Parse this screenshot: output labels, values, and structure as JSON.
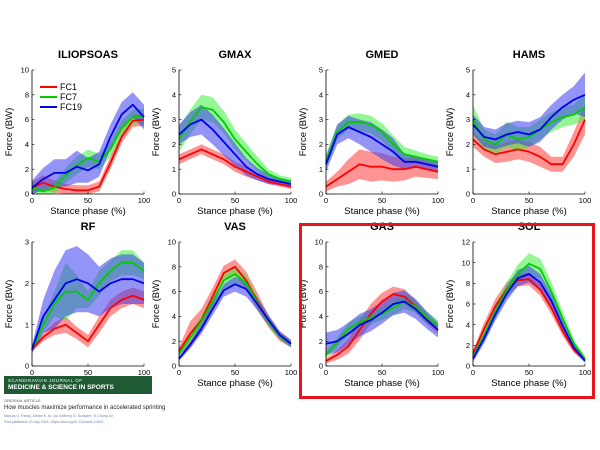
{
  "figure": {
    "journal_name_small": "SCANDINAVIAN JOURNAL OF",
    "journal_name_big": "MEDICINE & SCIENCE IN SPORTS",
    "article_type": "ORIGINAL ARTICLE",
    "article_title": "How muscles maximize performance in accelerated sprinting",
    "authors": "Marcus G. Pandy, Adrian K. M. Lai, Anthony G. Schache, Yi-Chung Lin",
    "doi_line": "First published: 13 July 2021 | https://doi.org/10.1111/sms.14021",
    "colors": {
      "FC1": "#ff0000",
      "FC7": "#00cc00",
      "FC19": "#0000ee",
      "highlight": "#e8141d"
    }
  },
  "chart_data": [
    {
      "type": "line",
      "title": "ILIOPSOAS",
      "xlabel": "Stance phase (%)",
      "ylabel": "Force (BW)",
      "xlim": [
        0,
        100
      ],
      "ylim": [
        0,
        10
      ],
      "yticks": [
        0,
        2,
        4,
        6,
        8,
        10
      ],
      "xticks": [
        0,
        50,
        100
      ],
      "legend": {
        "position": "top-left",
        "entries": [
          "FC1",
          "FC7",
          "FC19"
        ]
      },
      "x": [
        0,
        10,
        20,
        30,
        40,
        50,
        60,
        70,
        80,
        90,
        100
      ],
      "series": [
        {
          "name": "FC1",
          "values": [
            0.5,
            0.9,
            0.6,
            0.4,
            0.3,
            0.3,
            0.6,
            2.5,
            4.6,
            5.9,
            6.0
          ],
          "band": [
            0.5,
            0.6,
            0.5,
            0.4,
            0.4,
            0.4,
            0.4,
            0.5,
            0.5,
            0.5,
            0.5
          ]
        },
        {
          "name": "FC7",
          "values": [
            0.5,
            0.2,
            0.5,
            1.5,
            2.3,
            2.9,
            2.6,
            3.6,
            5.3,
            6.2,
            6.3
          ],
          "band": [
            0.5,
            0.4,
            0.5,
            0.6,
            0.7,
            0.7,
            0.6,
            0.6,
            0.6,
            0.6,
            0.6
          ]
        },
        {
          "name": "FC19",
          "values": [
            0.5,
            1.2,
            1.7,
            1.7,
            2.2,
            1.9,
            2.4,
            4.6,
            6.4,
            7.2,
            6.2
          ],
          "band": [
            0.6,
            0.9,
            1.1,
            1.1,
            1.3,
            1.0,
            1.0,
            1.0,
            1.0,
            1.0,
            1.0
          ]
        }
      ]
    },
    {
      "type": "line",
      "title": "GMAX",
      "xlabel": "Stance phase (%)",
      "ylabel": "Force (BW)",
      "xlim": [
        0,
        100
      ],
      "ylim": [
        0,
        5
      ],
      "yticks": [
        0,
        1,
        2,
        3,
        4,
        5
      ],
      "xticks": [
        0,
        50,
        100
      ],
      "x": [
        0,
        10,
        20,
        30,
        40,
        50,
        60,
        70,
        80,
        90,
        100
      ],
      "series": [
        {
          "name": "FC1",
          "values": [
            1.4,
            1.6,
            1.8,
            1.6,
            1.4,
            1.1,
            0.9,
            0.7,
            0.5,
            0.4,
            0.3
          ],
          "band": [
            0.2,
            0.2,
            0.2,
            0.2,
            0.2,
            0.2,
            0.2,
            0.15,
            0.1,
            0.1,
            0.1
          ]
        },
        {
          "name": "FC7",
          "values": [
            2.2,
            2.9,
            3.5,
            3.4,
            2.9,
            2.2,
            1.7,
            1.2,
            0.8,
            0.6,
            0.5
          ],
          "band": [
            0.5,
            0.5,
            0.5,
            0.5,
            0.45,
            0.4,
            0.35,
            0.3,
            0.2,
            0.15,
            0.15
          ]
        },
        {
          "name": "FC19",
          "values": [
            2.4,
            2.8,
            3.0,
            2.6,
            2.1,
            1.6,
            1.1,
            0.8,
            0.6,
            0.5,
            0.4
          ],
          "band": [
            0.4,
            0.5,
            0.6,
            0.6,
            0.55,
            0.45,
            0.35,
            0.25,
            0.2,
            0.15,
            0.15
          ]
        }
      ]
    },
    {
      "type": "line",
      "title": "GMED",
      "xlabel": "Stance phase (%)",
      "ylabel": "Force (BW)",
      "xlim": [
        0,
        100
      ],
      "ylim": [
        0,
        5
      ],
      "yticks": [
        0,
        1,
        2,
        3,
        4,
        5
      ],
      "xticks": [
        0,
        50,
        100
      ],
      "x": [
        0,
        10,
        20,
        30,
        40,
        50,
        60,
        70,
        80,
        90,
        100
      ],
      "series": [
        {
          "name": "FC1",
          "values": [
            0.3,
            0.6,
            0.9,
            1.2,
            1.1,
            1.1,
            1.0,
            1.0,
            1.1,
            1.0,
            0.9
          ],
          "band": [
            0.2,
            0.3,
            0.5,
            0.6,
            0.6,
            0.55,
            0.5,
            0.45,
            0.4,
            0.35,
            0.3
          ]
        },
        {
          "name": "FC7",
          "values": [
            1.3,
            2.5,
            2.9,
            2.9,
            2.8,
            2.5,
            2.0,
            1.6,
            1.5,
            1.4,
            1.3
          ],
          "band": [
            0.3,
            0.3,
            0.3,
            0.35,
            0.35,
            0.35,
            0.35,
            0.3,
            0.25,
            0.2,
            0.2
          ]
        },
        {
          "name": "FC19",
          "values": [
            1.2,
            2.4,
            2.7,
            2.5,
            2.3,
            2.0,
            1.7,
            1.3,
            1.3,
            1.2,
            1.1
          ],
          "band": [
            0.3,
            0.4,
            0.45,
            0.5,
            0.6,
            0.6,
            0.55,
            0.3,
            0.25,
            0.2,
            0.2
          ]
        }
      ]
    },
    {
      "type": "line",
      "title": "HAMS",
      "xlabel": "Stance phase (%)",
      "ylabel": "Force (BW)",
      "xlim": [
        0,
        100
      ],
      "ylim": [
        0,
        5
      ],
      "yticks": [
        0,
        1,
        2,
        3,
        4,
        5
      ],
      "xticks": [
        0,
        50,
        100
      ],
      "x": [
        0,
        10,
        20,
        30,
        40,
        50,
        60,
        70,
        80,
        90,
        100
      ],
      "series": [
        {
          "name": "FC1",
          "values": [
            2.2,
            1.8,
            1.6,
            1.7,
            1.8,
            1.7,
            1.5,
            1.2,
            1.2,
            2.0,
            3.0
          ],
          "band": [
            0.3,
            0.3,
            0.35,
            0.4,
            0.4,
            0.4,
            0.4,
            0.3,
            0.3,
            0.5,
            0.6
          ]
        },
        {
          "name": "FC7",
          "values": [
            3.0,
            2.2,
            2.0,
            2.4,
            2.2,
            2.3,
            2.6,
            2.9,
            3.1,
            3.2,
            3.5
          ],
          "band": [
            0.6,
            0.4,
            0.4,
            0.5,
            0.5,
            0.4,
            0.4,
            0.4,
            0.4,
            0.4,
            0.5
          ]
        },
        {
          "name": "FC19",
          "values": [
            2.8,
            2.3,
            2.2,
            2.4,
            2.5,
            2.4,
            2.6,
            3.1,
            3.5,
            3.8,
            4.0
          ],
          "band": [
            0.4,
            0.4,
            0.4,
            0.45,
            0.45,
            0.5,
            0.5,
            0.5,
            0.5,
            0.55,
            0.9
          ]
        }
      ]
    },
    {
      "type": "line",
      "title": "RF",
      "xlabel": "Stance phase (%)",
      "ylabel": "Force (BW)",
      "xlim": [
        0,
        100
      ],
      "ylim": [
        0,
        3
      ],
      "yticks": [
        0,
        1,
        2,
        3
      ],
      "xticks": [
        0,
        50,
        100
      ],
      "x": [
        0,
        10,
        20,
        30,
        40,
        50,
        60,
        70,
        80,
        90,
        100
      ],
      "series": [
        {
          "name": "FC1",
          "values": [
            0.4,
            0.7,
            0.9,
            1.0,
            0.8,
            0.6,
            1.0,
            1.4,
            1.6,
            1.7,
            1.6
          ],
          "band": [
            0.05,
            0.1,
            0.15,
            0.2,
            0.15,
            0.15,
            0.2,
            0.2,
            0.2,
            0.2,
            0.2
          ]
        },
        {
          "name": "FC7",
          "values": [
            0.4,
            1.0,
            1.5,
            1.8,
            1.8,
            1.6,
            2.0,
            2.3,
            2.5,
            2.5,
            2.3
          ],
          "band": [
            0.05,
            0.2,
            0.3,
            0.7,
            0.4,
            0.2,
            0.3,
            0.25,
            0.3,
            0.3,
            0.2
          ]
        },
        {
          "name": "FC19",
          "values": [
            0.4,
            1.2,
            1.6,
            2.0,
            2.1,
            2.0,
            1.8,
            2.0,
            2.1,
            2.1,
            2.0
          ],
          "band": [
            0.1,
            0.4,
            0.7,
            0.8,
            0.8,
            0.7,
            0.6,
            0.6,
            0.6,
            0.6,
            0.5
          ]
        }
      ]
    },
    {
      "type": "line",
      "title": "VAS",
      "xlabel": "Stance phase (%)",
      "ylabel": "Force (BW)",
      "xlim": [
        0,
        100
      ],
      "ylim": [
        0,
        10
      ],
      "yticks": [
        0,
        2,
        4,
        6,
        8,
        10
      ],
      "xticks": [
        0,
        50,
        100
      ],
      "x": [
        0,
        10,
        20,
        30,
        40,
        50,
        60,
        70,
        80,
        90,
        100
      ],
      "series": [
        {
          "name": "FC1",
          "values": [
            1.2,
            2.6,
            3.7,
            5.6,
            7.5,
            8.0,
            6.9,
            5.2,
            3.6,
            2.4,
            1.8
          ],
          "band": [
            0.3,
            1.0,
            0.9,
            0.7,
            0.6,
            0.6,
            0.7,
            0.7,
            0.5,
            0.4,
            0.3
          ]
        },
        {
          "name": "FC7",
          "values": [
            1.0,
            2.3,
            3.6,
            5.2,
            6.9,
            7.4,
            6.7,
            5.1,
            3.6,
            2.4,
            1.8
          ],
          "band": [
            0.2,
            0.4,
            0.5,
            0.6,
            0.7,
            0.7,
            0.6,
            0.5,
            0.4,
            0.3,
            0.3
          ]
        },
        {
          "name": "FC19",
          "values": [
            0.6,
            1.7,
            3.0,
            4.6,
            6.1,
            6.6,
            6.2,
            5.0,
            3.7,
            2.5,
            1.8
          ],
          "band": [
            0.2,
            0.3,
            0.4,
            0.5,
            0.5,
            0.6,
            0.6,
            0.5,
            0.4,
            0.3,
            0.3
          ]
        }
      ]
    },
    {
      "type": "line",
      "title": "GAS",
      "xlabel": "Stance phase (%)",
      "ylabel": "Force (BW)",
      "xlim": [
        0,
        100
      ],
      "ylim": [
        0,
        10
      ],
      "yticks": [
        0,
        2,
        4,
        6,
        8,
        10
      ],
      "xticks": [
        0,
        50,
        100
      ],
      "x": [
        0,
        10,
        20,
        30,
        40,
        50,
        60,
        70,
        80,
        90,
        100
      ],
      "series": [
        {
          "name": "FC1",
          "values": [
            0.4,
            0.9,
            1.6,
            2.9,
            4.2,
            5.2,
            5.8,
            5.6,
            4.8,
            3.8,
            2.9
          ],
          "band": [
            0.2,
            0.4,
            0.6,
            0.8,
            0.8,
            0.7,
            0.6,
            0.6,
            0.5,
            0.4,
            0.3
          ]
        },
        {
          "name": "FC7",
          "values": [
            0.9,
            1.9,
            3.0,
            3.5,
            3.9,
            4.2,
            4.7,
            5.2,
            4.8,
            3.9,
            3.3
          ],
          "band": [
            0.3,
            0.4,
            0.5,
            0.5,
            0.5,
            0.5,
            0.6,
            0.6,
            0.5,
            0.5,
            0.4
          ]
        },
        {
          "name": "FC19",
          "values": [
            1.8,
            2.0,
            2.6,
            3.3,
            3.7,
            4.3,
            5.0,
            5.2,
            4.6,
            3.7,
            2.9
          ],
          "band": [
            0.9,
            0.9,
            0.9,
            0.9,
            0.9,
            0.9,
            0.9,
            0.9,
            0.8,
            0.7,
            0.6
          ]
        }
      ]
    },
    {
      "type": "line",
      "title": "SOL",
      "xlabel": "Stance phase (%)",
      "ylabel": "Force (BW)",
      "xlim": [
        0,
        100
      ],
      "ylim": [
        0,
        12
      ],
      "yticks": [
        0,
        2,
        4,
        6,
        8,
        10,
        12
      ],
      "xticks": [
        0,
        50,
        100
      ],
      "x": [
        0,
        10,
        20,
        30,
        40,
        50,
        60,
        70,
        80,
        90,
        100
      ],
      "series": [
        {
          "name": "FC1",
          "values": [
            1.2,
            3.6,
            5.8,
            7.4,
            8.3,
            8.4,
            7.4,
            5.6,
            3.4,
            1.6,
            0.6
          ],
          "band": [
            0.3,
            0.6,
            0.7,
            0.7,
            0.6,
            0.6,
            0.6,
            0.6,
            0.5,
            0.3,
            0.2
          ]
        },
        {
          "name": "FC7",
          "values": [
            0.9,
            3.0,
            5.3,
            7.3,
            8.9,
            9.9,
            9.4,
            7.2,
            4.6,
            2.2,
            0.7
          ],
          "band": [
            0.3,
            0.6,
            0.7,
            0.8,
            0.9,
            1.0,
            1.0,
            0.9,
            0.7,
            0.4,
            0.2
          ]
        },
        {
          "name": "FC19",
          "values": [
            0.7,
            2.7,
            5.0,
            7.0,
            8.5,
            8.9,
            8.1,
            6.3,
            3.9,
            1.8,
            0.5
          ],
          "band": [
            0.3,
            0.5,
            0.6,
            0.7,
            0.8,
            0.8,
            0.8,
            0.7,
            0.6,
            0.4,
            0.2
          ]
        }
      ]
    }
  ]
}
